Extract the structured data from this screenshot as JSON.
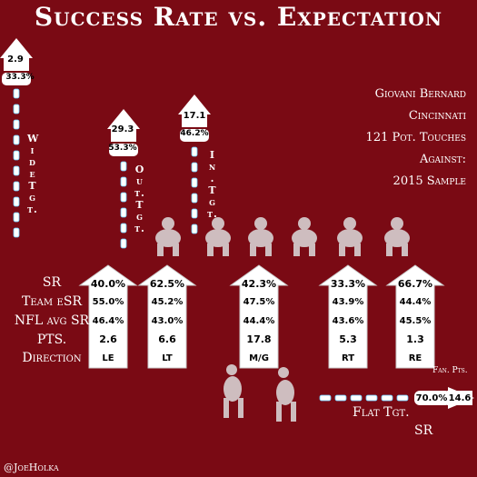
{
  "title": "Success Rate vs. Expectation",
  "info": [
    "Giovani Bernard",
    "Cincinnati",
    "121 Pot. Touches",
    "Against:",
    "2015 Sample"
  ],
  "row_labels": [
    "SR",
    "Team eSR",
    "NFL avg SR",
    "PTS.",
    "Direction"
  ],
  "credit": "@JoeHolka",
  "fan_pts_label": "Fan. Pts.",
  "chart_data": {
    "type": "table",
    "run_directions": [
      {
        "direction": "LE",
        "sr": "40.0%",
        "team_esr": "55.0%",
        "nfl_avg_sr": "46.4%",
        "pts": "2.6"
      },
      {
        "direction": "LT",
        "sr": "62.5%",
        "team_esr": "45.2%",
        "nfl_avg_sr": "43.0%",
        "pts": "6.6"
      },
      {
        "direction": "M/G",
        "sr": "42.3%",
        "team_esr": "47.5%",
        "nfl_avg_sr": "44.4%",
        "pts": "17.8"
      },
      {
        "direction": "RT",
        "sr": "33.3%",
        "team_esr": "43.9%",
        "nfl_avg_sr": "43.6%",
        "pts": "5.3"
      },
      {
        "direction": "RE",
        "sr": "66.7%",
        "team_esr": "44.4%",
        "nfl_avg_sr": "45.5%",
        "pts": "1.3"
      }
    ],
    "targets": [
      {
        "label": "Wide Tgt.",
        "pts": "2.9",
        "sr": "33.3%"
      },
      {
        "label": "Out. Tgt.",
        "pts": "29.3",
        "sr": "53.3%"
      },
      {
        "label": "In. Tgt.",
        "pts": "17.1",
        "sr": "46.2%"
      },
      {
        "label": "Flat Tgt.",
        "sr": "70.0%",
        "pts": "14.6",
        "sr_label": "SR"
      }
    ]
  }
}
